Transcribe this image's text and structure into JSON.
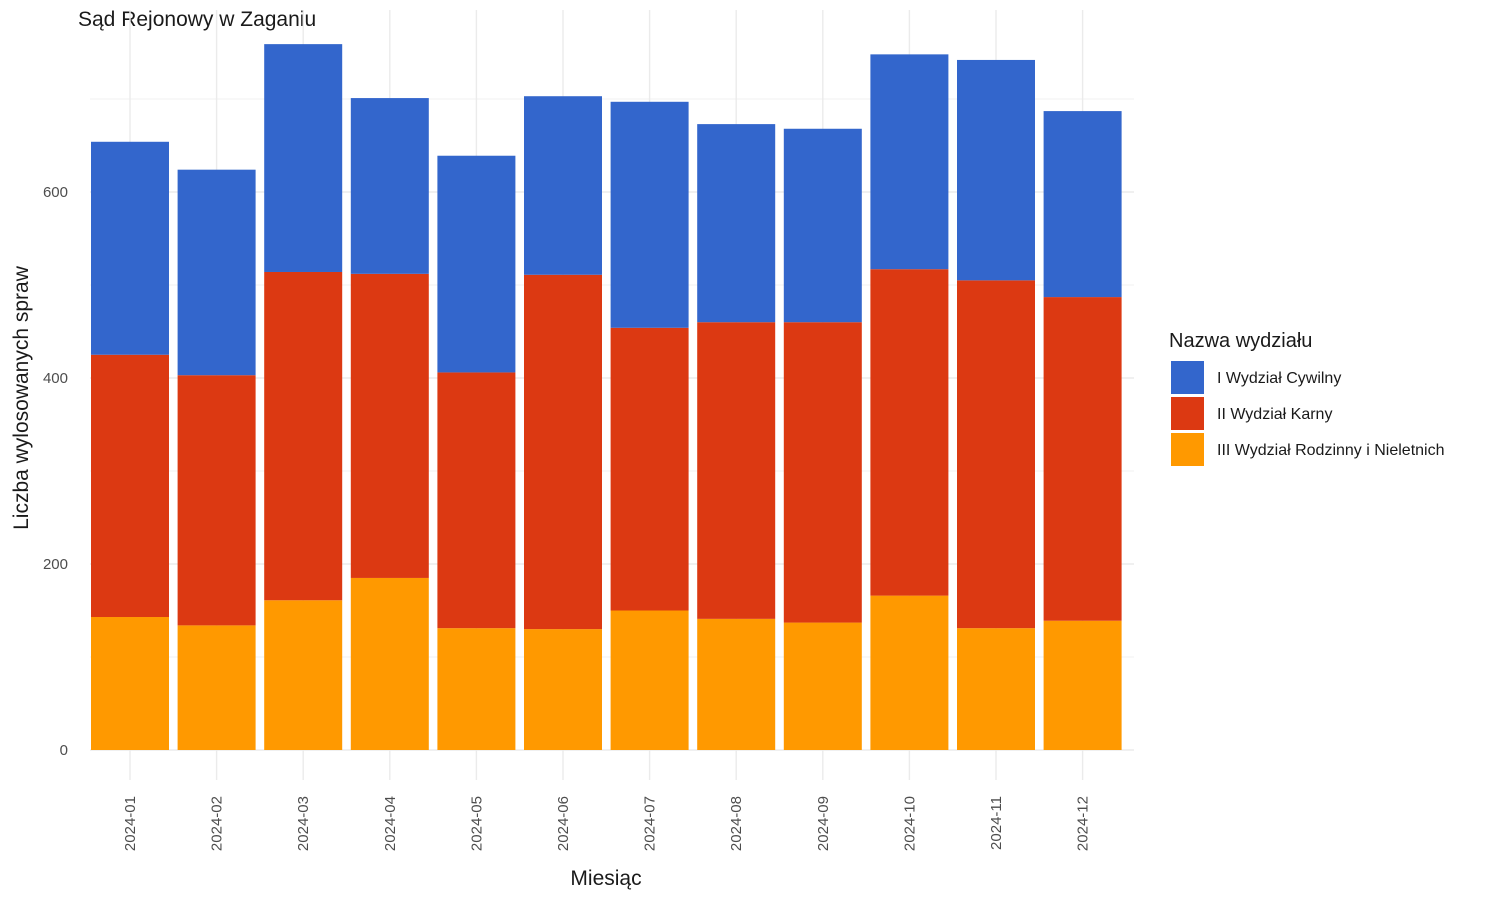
{
  "chart_data": {
    "type": "bar",
    "stacked": true,
    "title": "Sąd Rejonowy w Zaganiu",
    "xlabel": "Miesiąc",
    "ylabel": "Liczba wylosowanych spraw",
    "ylim": [
      0,
      790
    ],
    "yticks": [
      0,
      200,
      400,
      600
    ],
    "grid": true,
    "legend_position": "right",
    "legend_title": "Nazwa wydziału",
    "categories": [
      "2024-01",
      "2024-02",
      "2024-03",
      "2024-04",
      "2024-05",
      "2024-06",
      "2024-07",
      "2024-08",
      "2024-09",
      "2024-10",
      "2024-11",
      "2024-12"
    ],
    "series": [
      {
        "name": "III Wydział Rodzinny i Nieletnich",
        "color": "#FF9900",
        "values": [
          143,
          134,
          161,
          185,
          131,
          130,
          150,
          141,
          137,
          166,
          131,
          139
        ]
      },
      {
        "name": "II Wydział Karny",
        "color": "#DC3912",
        "values": [
          282,
          269,
          353,
          327,
          275,
          381,
          304,
          319,
          323,
          351,
          374,
          348
        ]
      },
      {
        "name": "I Wydział Cywilny",
        "color": "#3366CC",
        "values": [
          229,
          221,
          245,
          189,
          233,
          192,
          243,
          213,
          208,
          231,
          237,
          200
        ]
      }
    ],
    "legend_order": [
      "I Wydział Cywilny",
      "II Wydział Karny",
      "III Wydział Rodzinny i Nieletnich"
    ]
  }
}
